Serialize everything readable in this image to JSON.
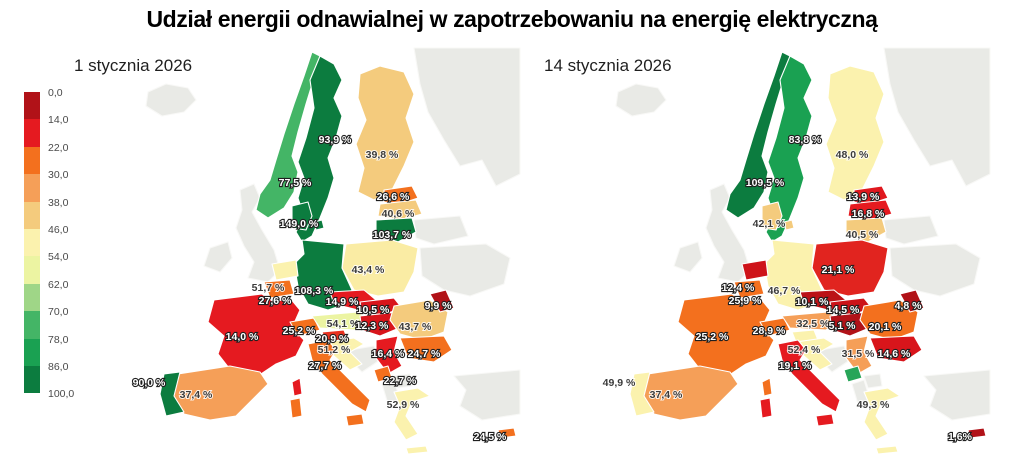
{
  "title": "Udział energii odnawialnej w zapotrzebowaniu na energię elektryczną",
  "no_data_color": "#e9eae6",
  "legend": {
    "ticks": [
      "0,0",
      "14,0",
      "22,0",
      "30,0",
      "38,0",
      "46,0",
      "54,0",
      "62,0",
      "70,0",
      "78,0",
      "86,0",
      "100,0"
    ],
    "colors": [
      "#b11218",
      "#e51a20",
      "#f3701e",
      "#f59f58",
      "#f4cb7d",
      "#fbf2ae",
      "#ecf4a2",
      "#9fd687",
      "#44b566",
      "#1aa152",
      "#0c7c3f"
    ]
  },
  "maps": [
    {
      "subtitle": "1 stycznia 2026",
      "countries": {
        "norway": {
          "label": "77,5 %",
          "color": "#44b566"
        },
        "sweden": {
          "label": "93,9 %",
          "color": "#0c7c3f"
        },
        "finland": {
          "label": "39,8 %",
          "color": "#f4cb7d"
        },
        "estonia": {
          "label": "26,6 %",
          "color": "#f3701e"
        },
        "latvia": {
          "label": "40,6 %",
          "color": "#f4cb7d"
        },
        "lithuania": {
          "label": "103,7 %",
          "color": "#0c7c3f"
        },
        "denmark": {
          "label": "149,0 %",
          "color": "#0c7c3f"
        },
        "poland": {
          "label": "43,4 %",
          "color": "#faeca4"
        },
        "germany": {
          "label": "108,3 %",
          "color": "#0c7c3f"
        },
        "netherlands": {
          "label": "51,7 %",
          "color": "#fbf2ae"
        },
        "belgium": {
          "label": "27,6 %",
          "color": "#f3701e"
        },
        "france": {
          "label": "14,0 %",
          "color": "#e51a20"
        },
        "switzerland": {
          "label": "25,2 %",
          "color": "#f3701e"
        },
        "czechia": {
          "label": "14,9 %",
          "color": "#e51a20"
        },
        "austria": {
          "label": "54,1 %",
          "color": "#ecf4a2"
        },
        "slovakia": {
          "label": "10,5 %",
          "color": "#d8151b"
        },
        "hungary": {
          "label": "12,3 %",
          "color": "#d8151b"
        },
        "slovenia": {
          "label": "20,9 %",
          "color": "#e8311f"
        },
        "croatia": {
          "label": "51,2 %",
          "color": "#fbf2ae"
        },
        "italy": {
          "label": "27,7 %",
          "color": "#f3701e"
        },
        "serbia": {
          "label": "16,4 %",
          "color": "#e51a20"
        },
        "romania": {
          "label": "43,7 %",
          "color": "#f4cb7d"
        },
        "moldova": {
          "label": "9,9 %",
          "color": "#b11218"
        },
        "bulgaria": {
          "label": "24,7 %",
          "color": "#f3701e"
        },
        "montenegro": {
          "label": "22,7 %",
          "color": "#f3701e"
        },
        "greece": {
          "label": "52,9 %",
          "color": "#fbf2ae"
        },
        "spain": {
          "label": "37,4 %",
          "color": "#f59f58"
        },
        "portugal": {
          "label": "90,0 %",
          "color": "#0c7c3f"
        },
        "cyprus": {
          "label": "24,5 %",
          "color": "#f3701e"
        }
      }
    },
    {
      "subtitle": "14 stycznia 2026",
      "countries": {
        "norway": {
          "label": "109,5 %",
          "color": "#0c7c3f"
        },
        "sweden": {
          "label": "83,8 %",
          "color": "#1aa152"
        },
        "finland": {
          "label": "48,0 %",
          "color": "#fbf2ae"
        },
        "estonia": {
          "label": "13,9 %",
          "color": "#e0181e"
        },
        "latvia": {
          "label": "16,8 %",
          "color": "#e51a20"
        },
        "lithuania": {
          "label": "40,5 %",
          "color": "#f4cb7d"
        },
        "denmark": {
          "label": "42,1 %",
          "color": "#f4cb7d"
        },
        "poland": {
          "label": "21,1 %",
          "color": "#e1241f"
        },
        "germany": {
          "label": "46,7 %",
          "color": "#fbf2ae"
        },
        "netherlands": {
          "label": "12,4 %",
          "color": "#ce1319"
        },
        "belgium": {
          "label": "25,9 %",
          "color": "#f3701e"
        },
        "france": {
          "label": "25,2 %",
          "color": "#f3701e"
        },
        "switzerland": {
          "label": "28,9 %",
          "color": "#f3701e"
        },
        "czechia": {
          "label": "10,1 %",
          "color": "#bb1217"
        },
        "austria": {
          "label": "32,5 %",
          "color": "#f59f58"
        },
        "slovakia": {
          "label": "14,5 %",
          "color": "#cc1318"
        },
        "hungary": {
          "label": "5,1 %",
          "color": "#b11218"
        },
        "slovenia": {
          "label": null,
          "color": "#fbf2ae"
        },
        "croatia": {
          "label": "52,4 %",
          "color": "#fbf2ae"
        },
        "italy": {
          "label": "19,1 %",
          "color": "#e51a20"
        },
        "serbia": {
          "label": "31,5 %",
          "color": "#f59f58"
        },
        "romania": {
          "label": "20,1 %",
          "color": "#f3701e"
        },
        "moldova": {
          "label": "4,8 %",
          "color": "#b11218"
        },
        "bulgaria": {
          "label": "14,6 %",
          "color": "#d8151b"
        },
        "montenegro": {
          "label": null,
          "color": "#27a558"
        },
        "greece": {
          "label": "49,3 %",
          "color": "#fbf2ae"
        },
        "spain": {
          "label": "37,4 %",
          "color": "#f59f58"
        },
        "portugal": {
          "label": "49,9 %",
          "color": "#fbf2ae"
        },
        "cyprus": {
          "label": "1,6%",
          "color": "#b11218"
        }
      }
    }
  ],
  "chart_data": {
    "type": "choropleth",
    "title": "Udział energii odnawialnej w zapotrzebowaniu na energię elektryczną",
    "unit": "%",
    "legend_breaks": [
      0,
      14,
      22,
      30,
      38,
      46,
      54,
      62,
      70,
      78,
      86,
      100
    ],
    "legend_position": "left",
    "series": [
      {
        "name": "1 stycznia 2026",
        "values": {
          "Norwegia": 77.5,
          "Szwecja": 93.9,
          "Finlandia": 39.8,
          "Estonia": 26.6,
          "Łotwa": 40.6,
          "Litwa": 103.7,
          "Dania": 149.0,
          "Polska": 43.4,
          "Niemcy": 108.3,
          "Holandia": 51.7,
          "Belgia": 27.6,
          "Francja": 14.0,
          "Szwajcaria": 25.2,
          "Czechy": 14.9,
          "Austria": 54.1,
          "Słowacja": 10.5,
          "Węgry": 12.3,
          "Słowenia": 20.9,
          "Chorwacja": 51.2,
          "Włochy": 27.7,
          "Serbia": 16.4,
          "Rumunia": 43.7,
          "Mołdawia": 9.9,
          "Bułgaria": 24.7,
          "Czarnogóra": 22.7,
          "Grecja": 52.9,
          "Hiszpania": 37.4,
          "Portugalia": 90.0,
          "Cypr": 24.5
        }
      },
      {
        "name": "14 stycznia 2026",
        "values": {
          "Norwegia": 109.5,
          "Szwecja": 83.8,
          "Finlandia": 48.0,
          "Estonia": 13.9,
          "Łotwa": 16.8,
          "Litwa": 40.5,
          "Dania": 42.1,
          "Polska": 21.1,
          "Niemcy": 46.7,
          "Holandia": 12.4,
          "Belgia": 25.9,
          "Francja": 25.2,
          "Szwajcaria": 28.9,
          "Czechy": 10.1,
          "Austria": 32.5,
          "Słowacja": 14.5,
          "Węgry": 5.1,
          "Chorwacja": 52.4,
          "Włochy": 19.1,
          "Serbia": 31.5,
          "Rumunia": 20.1,
          "Mołdawia": 4.8,
          "Bułgaria": 14.6,
          "Grecja": 49.3,
          "Hiszpania": 37.4,
          "Portugalia": 49.9,
          "Cypr": 1.6
        }
      }
    ]
  }
}
